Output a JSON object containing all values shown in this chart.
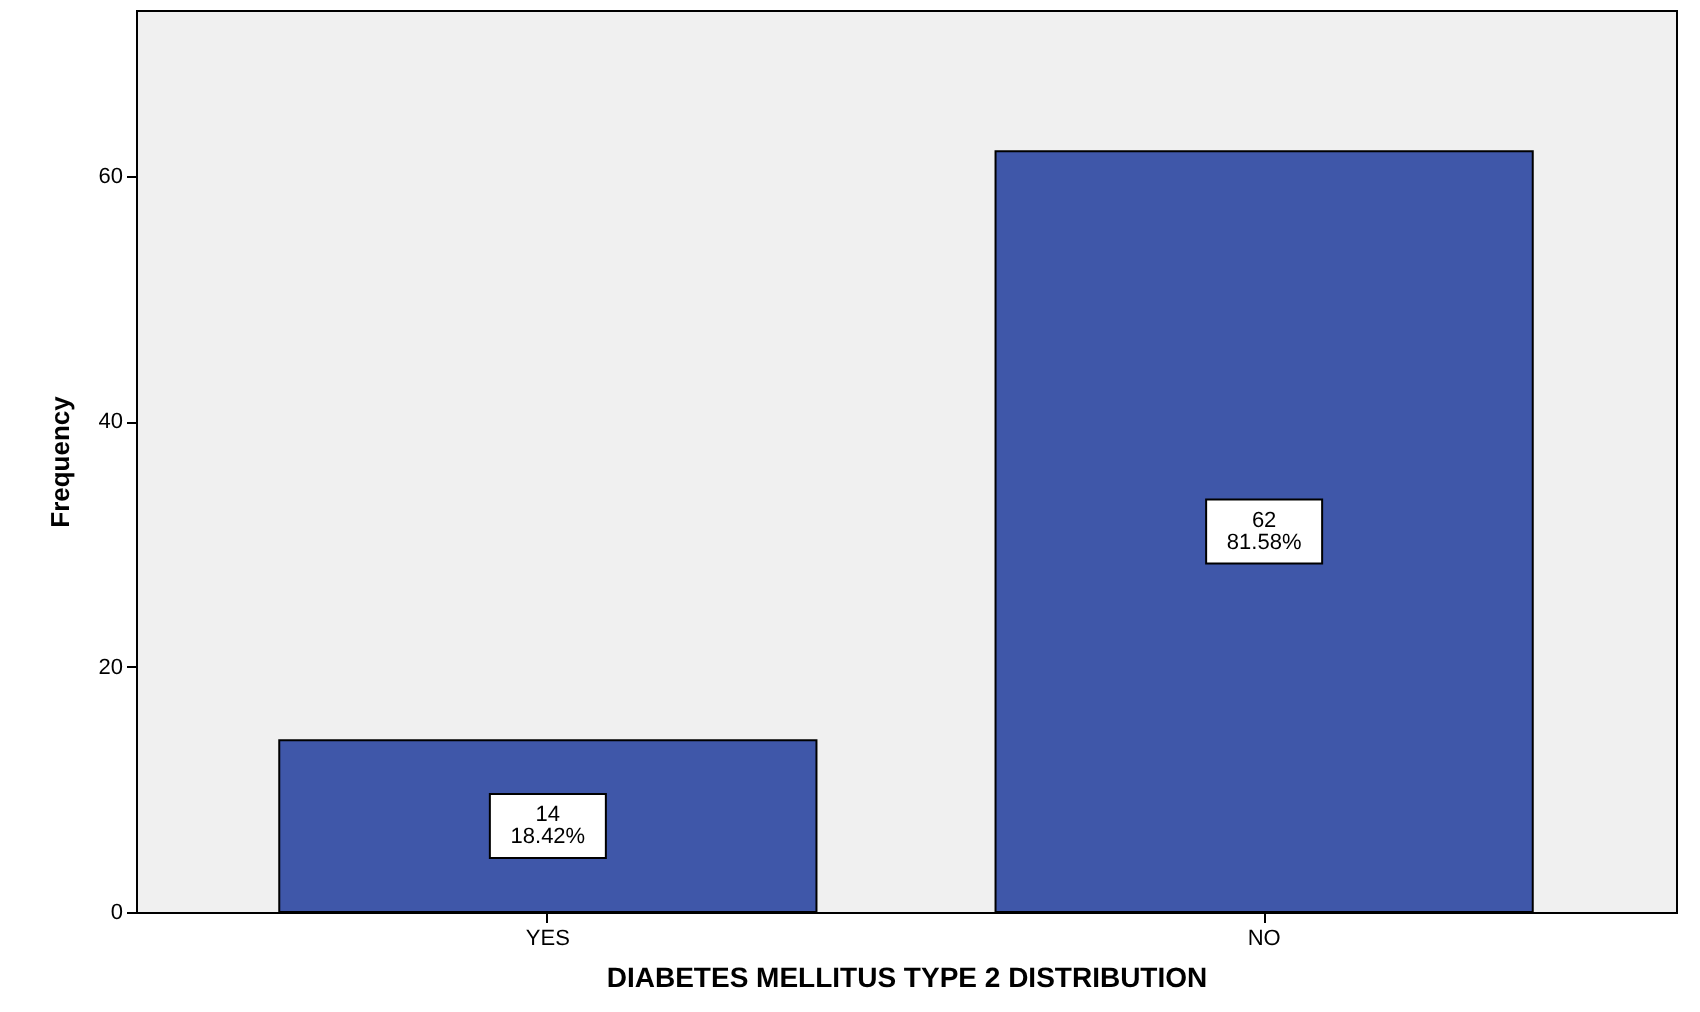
{
  "chart_data": {
    "type": "bar",
    "xlabel": "DIABETES MELLITUS TYPE 2 DISTRIBUTION",
    "ylabel": "Frequency",
    "categories": [
      "YES",
      "NO"
    ],
    "values": [
      14,
      62
    ],
    "value_labels": [
      "14\n18.42%",
      "62\n81.58%"
    ],
    "color": "#3f57a9",
    "ylim": [
      0,
      73.5
    ],
    "yticks": [
      0,
      20,
      40,
      60
    ],
    "grid": false
  }
}
